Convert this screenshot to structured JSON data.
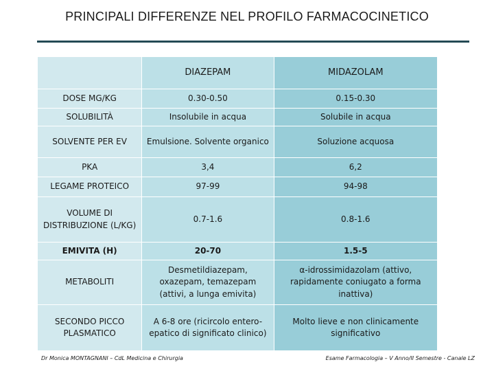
{
  "title": "PRINCIPALI DIFFERENZE NEL PROFILO FARMACOCINETICO",
  "table": {
    "headers": [
      "",
      "DIAZEPAM",
      "MIDAZOLAM"
    ],
    "rows": [
      {
        "label": "DOSE MG/KG",
        "diazepam": "0.30-0.50",
        "midazolam": "0.15-0.30"
      },
      {
        "label": "SOLUBILITÀ",
        "diazepam": "Insolubile in acqua",
        "midazolam": "Solubile in acqua"
      },
      {
        "label": "SOLVENTE PER EV",
        "diazepam": "Emulsione. Solvente organico",
        "midazolam": "Soluzione acquosa"
      },
      {
        "label": "PKA",
        "diazepam": "3,4",
        "midazolam": "6,2"
      },
      {
        "label": "LEGAME PROTEICO",
        "diazepam": "97-99",
        "midazolam": "94-98"
      },
      {
        "label": "VOLUME DI DISTRIBUZIONE (L/KG)",
        "diazepam": "0.7-1.6",
        "midazolam": "0.8-1.6"
      },
      {
        "label": "EMIVITA (H)",
        "diazepam": "20-70",
        "midazolam": "1.5-5"
      },
      {
        "label": "METABOLITI",
        "diazepam": "Desmetildiazepam, oxazepam, temazepam (attivi, a lunga emivita)",
        "midazolam": "α-idrossimidazolam (attivo, rapidamente coniugato a forma inattiva)"
      },
      {
        "label": "SECONDO PICCO PLASMATICO",
        "diazepam": "A 6-8 ore (ricircolo entero-epatico di significato clinico)",
        "midazolam": "Molto lieve e non clinicamente significativo"
      }
    ]
  },
  "footer": {
    "left": "Dr Monica MONTAGNANI – CdL Medicina e Chirurgia",
    "right": "Esame Farmacologia – V Anno/II Semestre - Canale LZ"
  },
  "colors": {
    "rule": "#244a55",
    "label_col": "#d2e9ee",
    "diazepam_col": "#bce0e7",
    "midazolam_col": "#98cdd8"
  }
}
